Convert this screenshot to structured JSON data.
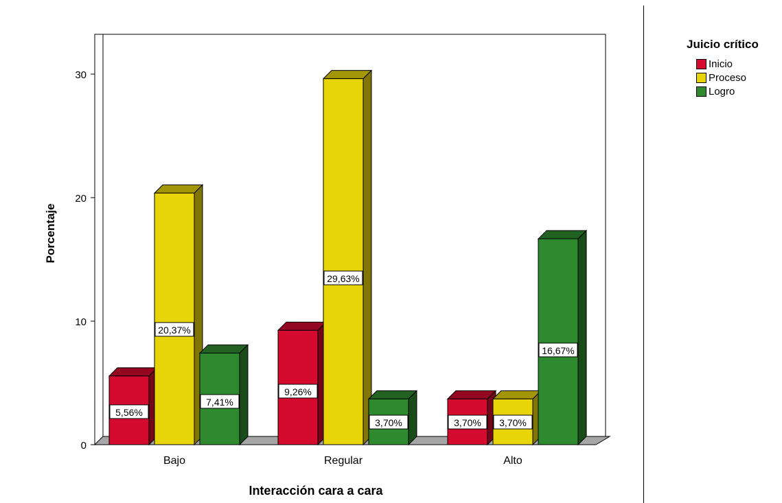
{
  "chart_data": {
    "type": "bar",
    "xlabel": "Interacción cara a cara",
    "ylabel": "Porcentaje",
    "categories": [
      "Bajo",
      "Regular",
      "Alto"
    ],
    "series": [
      {
        "name": "Inicio",
        "color": "#d40a2f",
        "values": [
          5.56,
          9.26,
          3.7
        ],
        "labels": [
          "5,56%",
          "9,26%",
          "3,70%"
        ]
      },
      {
        "name": "Proceso",
        "color": "#e8d509",
        "values": [
          20.37,
          29.63,
          3.7
        ],
        "labels": [
          "20,37%",
          "29,63%",
          "3,70%"
        ]
      },
      {
        "name": "Logro",
        "color": "#2f8a2f",
        "values": [
          7.41,
          3.7,
          16.67
        ],
        "labels": [
          "7,41%",
          "3,70%",
          "16,67%"
        ]
      }
    ],
    "yticks": [
      "0",
      "10",
      "20",
      "30"
    ],
    "ylim": [
      0,
      33
    ],
    "grid": false,
    "legend": {
      "title": "Juicio crítico",
      "position": "right"
    }
  }
}
